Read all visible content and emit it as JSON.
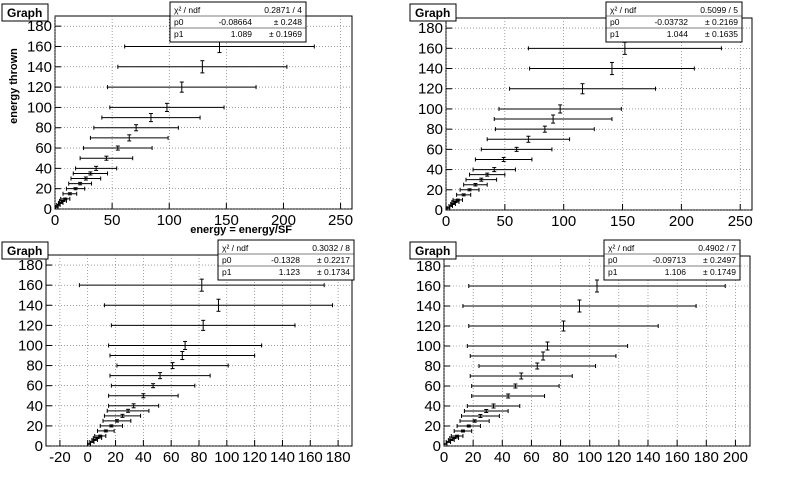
{
  "chart_data": [
    {
      "type": "scatter",
      "title": "Graph",
      "xlabel": "energy = energy/SF",
      "ylabel": "energy thrown",
      "xlim": [
        0,
        260
      ],
      "ylim": [
        0,
        190
      ],
      "xticks": [
        "0",
        "50",
        "100",
        "150",
        "200",
        "250"
      ],
      "yticks": [
        "0",
        "20",
        "40",
        "60",
        "80",
        "100",
        "120",
        "140",
        "160",
        "180"
      ],
      "grid": true,
      "stats": [
        {
          "name": "χ² / ndf",
          "value": "0.2871 / 4"
        },
        {
          "name": "p0",
          "value": "-0.08664",
          "error": "± 0.248"
        },
        {
          "name": "p1",
          "value": "1.089",
          "error": "± 0.1969"
        }
      ],
      "points": [
        {
          "x": 144,
          "y": 160,
          "xerr": 83,
          "yerr": 6
        },
        {
          "x": 129,
          "y": 140,
          "xerr": 74,
          "yerr": 6
        },
        {
          "x": 111,
          "y": 120,
          "xerr": 65,
          "yerr": 5
        },
        {
          "x": 98,
          "y": 100,
          "xerr": 50,
          "yerr": 4
        },
        {
          "x": 84,
          "y": 90,
          "xerr": 43,
          "yerr": 4
        },
        {
          "x": 71,
          "y": 80,
          "xerr": 37,
          "yerr": 3
        },
        {
          "x": 65,
          "y": 70,
          "xerr": 34,
          "yerr": 3
        },
        {
          "x": 55,
          "y": 60,
          "xerr": 30,
          "yerr": 2
        },
        {
          "x": 45,
          "y": 50,
          "xerr": 23,
          "yerr": 2
        },
        {
          "x": 36,
          "y": 40,
          "xerr": 18,
          "yerr": 2
        },
        {
          "x": 31,
          "y": 35,
          "xerr": 15,
          "yerr": 1.5
        },
        {
          "x": 27,
          "y": 30,
          "xerr": 13,
          "yerr": 1.5
        },
        {
          "x": 22,
          "y": 25,
          "xerr": 10,
          "yerr": 1.2
        },
        {
          "x": 18,
          "y": 20,
          "xerr": 8,
          "yerr": 1
        },
        {
          "x": 13,
          "y": 15,
          "xerr": 6,
          "yerr": 1
        },
        {
          "x": 9,
          "y": 10,
          "xerr": 4,
          "yerr": 0.8
        },
        {
          "x": 7,
          "y": 8,
          "xerr": 3,
          "yerr": 0.6
        },
        {
          "x": 5,
          "y": 6,
          "xerr": 2,
          "yerr": 0.5
        },
        {
          "x": 3,
          "y": 4,
          "xerr": 1.5,
          "yerr": 0.4
        },
        {
          "x": 1.5,
          "y": 2,
          "xerr": 1,
          "yerr": 0.3
        }
      ]
    },
    {
      "type": "scatter",
      "title": "Graph",
      "xlabel": "",
      "ylabel": "",
      "xlim": [
        0,
        260
      ],
      "ylim": [
        0,
        190
      ],
      "xticks": [
        "0",
        "50",
        "100",
        "150",
        "200",
        "250"
      ],
      "yticks": [
        "0",
        "20",
        "40",
        "60",
        "80",
        "100",
        "120",
        "140",
        "160",
        "180"
      ],
      "grid": true,
      "stats": [
        {
          "name": "χ² / ndf",
          "value": "0.5099 / 5"
        },
        {
          "name": "p0",
          "value": "-0.03732",
          "error": "± 0.2169"
        },
        {
          "name": "p1",
          "value": "1.044",
          "error": "± 0.1635"
        }
      ],
      "points": [
        {
          "x": 152,
          "y": 160,
          "xerr": 82,
          "yerr": 6
        },
        {
          "x": 141,
          "y": 140,
          "xerr": 70,
          "yerr": 6
        },
        {
          "x": 116,
          "y": 120,
          "xerr": 62,
          "yerr": 5
        },
        {
          "x": 97,
          "y": 100,
          "xerr": 52,
          "yerr": 4
        },
        {
          "x": 91,
          "y": 90,
          "xerr": 50,
          "yerr": 4
        },
        {
          "x": 84,
          "y": 80,
          "xerr": 42,
          "yerr": 3
        },
        {
          "x": 70,
          "y": 70,
          "xerr": 35,
          "yerr": 3
        },
        {
          "x": 60,
          "y": 60,
          "xerr": 30,
          "yerr": 2
        },
        {
          "x": 49,
          "y": 50,
          "xerr": 24,
          "yerr": 2
        },
        {
          "x": 41,
          "y": 40,
          "xerr": 18,
          "yerr": 2
        },
        {
          "x": 35,
          "y": 35,
          "xerr": 15,
          "yerr": 1.5
        },
        {
          "x": 30,
          "y": 30,
          "xerr": 13,
          "yerr": 1.5
        },
        {
          "x": 25,
          "y": 25,
          "xerr": 10,
          "yerr": 1.2
        },
        {
          "x": 20,
          "y": 20,
          "xerr": 8,
          "yerr": 1
        },
        {
          "x": 15,
          "y": 15,
          "xerr": 6,
          "yerr": 1
        },
        {
          "x": 10,
          "y": 10,
          "xerr": 4,
          "yerr": 0.8
        },
        {
          "x": 8,
          "y": 8,
          "xerr": 3,
          "yerr": 0.6
        },
        {
          "x": 6,
          "y": 6,
          "xerr": 2,
          "yerr": 0.5
        },
        {
          "x": 4,
          "y": 4,
          "xerr": 1.5,
          "yerr": 0.4
        },
        {
          "x": 2,
          "y": 2,
          "xerr": 1,
          "yerr": 0.3
        }
      ]
    },
    {
      "type": "scatter",
      "title": "Graph",
      "xlabel": "",
      "ylabel": "",
      "xlim": [
        -30,
        190
      ],
      "ylim": [
        0,
        190
      ],
      "xticks": [
        "-20",
        "0",
        "20",
        "40",
        "60",
        "80",
        "100",
        "120",
        "140",
        "160",
        "180"
      ],
      "yticks": [
        "0",
        "20",
        "40",
        "60",
        "80",
        "100",
        "120",
        "140",
        "160",
        "180"
      ],
      "grid": true,
      "stats": [
        {
          "name": "χ² / ndf",
          "value": "0.3032 / 8"
        },
        {
          "name": "p0",
          "value": "-0.1328",
          "error": "± 0.2217"
        },
        {
          "name": "p1",
          "value": "1.123",
          "error": "± 0.1734"
        }
      ],
      "points": [
        {
          "x": 82,
          "y": 160,
          "xerr": 88,
          "yerr": 6
        },
        {
          "x": 94,
          "y": 140,
          "xerr": 82,
          "yerr": 6
        },
        {
          "x": 83,
          "y": 120,
          "xerr": 66,
          "yerr": 5
        },
        {
          "x": 70,
          "y": 100,
          "xerr": 55,
          "yerr": 4
        },
        {
          "x": 68,
          "y": 90,
          "xerr": 52,
          "yerr": 4
        },
        {
          "x": 61,
          "y": 80,
          "xerr": 40,
          "yerr": 3
        },
        {
          "x": 52,
          "y": 70,
          "xerr": 36,
          "yerr": 3
        },
        {
          "x": 47,
          "y": 60,
          "xerr": 30,
          "yerr": 2
        },
        {
          "x": 40,
          "y": 50,
          "xerr": 25,
          "yerr": 2
        },
        {
          "x": 33,
          "y": 40,
          "xerr": 18,
          "yerr": 2
        },
        {
          "x": 29,
          "y": 35,
          "xerr": 15,
          "yerr": 1.5
        },
        {
          "x": 25,
          "y": 30,
          "xerr": 13,
          "yerr": 1.5
        },
        {
          "x": 21,
          "y": 25,
          "xerr": 10,
          "yerr": 1.2
        },
        {
          "x": 17,
          "y": 20,
          "xerr": 8,
          "yerr": 1
        },
        {
          "x": 13,
          "y": 15,
          "xerr": 6,
          "yerr": 1
        },
        {
          "x": 9,
          "y": 10,
          "xerr": 4,
          "yerr": 0.8
        },
        {
          "x": 7,
          "y": 8,
          "xerr": 3,
          "yerr": 0.6
        },
        {
          "x": 5,
          "y": 6,
          "xerr": 2,
          "yerr": 0.5
        },
        {
          "x": 3,
          "y": 4,
          "xerr": 1.5,
          "yerr": 0.4
        },
        {
          "x": 1,
          "y": 2,
          "xerr": 1,
          "yerr": 0.3
        }
      ]
    },
    {
      "type": "scatter",
      "title": "Graph",
      "xlabel": "",
      "ylabel": "",
      "xlim": [
        0,
        210
      ],
      "ylim": [
        0,
        190
      ],
      "xticks": [
        "0",
        "20",
        "40",
        "60",
        "80",
        "100",
        "120",
        "140",
        "160",
        "180",
        "200"
      ],
      "yticks": [
        "0",
        "20",
        "40",
        "60",
        "80",
        "100",
        "120",
        "140",
        "160",
        "180"
      ],
      "grid": true,
      "stats": [
        {
          "name": "χ² / ndf",
          "value": "0.4902 / 7"
        },
        {
          "name": "p0",
          "value": "-0.09713",
          "error": "± 0.2497"
        },
        {
          "name": "p1",
          "value": "1.106",
          "error": "± 0.1749"
        }
      ],
      "points": [
        {
          "x": 105,
          "y": 160,
          "xerr": 88,
          "yerr": 6
        },
        {
          "x": 93,
          "y": 140,
          "xerr": 80,
          "yerr": 6
        },
        {
          "x": 82,
          "y": 120,
          "xerr": 65,
          "yerr": 5
        },
        {
          "x": 71,
          "y": 100,
          "xerr": 55,
          "yerr": 4
        },
        {
          "x": 68,
          "y": 90,
          "xerr": 50,
          "yerr": 4
        },
        {
          "x": 64,
          "y": 80,
          "xerr": 40,
          "yerr": 3
        },
        {
          "x": 53,
          "y": 70,
          "xerr": 35,
          "yerr": 3
        },
        {
          "x": 49,
          "y": 60,
          "xerr": 30,
          "yerr": 2
        },
        {
          "x": 44,
          "y": 50,
          "xerr": 25,
          "yerr": 2
        },
        {
          "x": 34,
          "y": 40,
          "xerr": 18,
          "yerr": 2
        },
        {
          "x": 29,
          "y": 35,
          "xerr": 15,
          "yerr": 1.5
        },
        {
          "x": 25,
          "y": 30,
          "xerr": 13,
          "yerr": 1.5
        },
        {
          "x": 21,
          "y": 25,
          "xerr": 10,
          "yerr": 1.2
        },
        {
          "x": 17,
          "y": 20,
          "xerr": 8,
          "yerr": 1
        },
        {
          "x": 13,
          "y": 15,
          "xerr": 6,
          "yerr": 1
        },
        {
          "x": 9,
          "y": 10,
          "xerr": 4,
          "yerr": 0.8
        },
        {
          "x": 7,
          "y": 8,
          "xerr": 3,
          "yerr": 0.6
        },
        {
          "x": 5,
          "y": 6,
          "xerr": 2,
          "yerr": 0.5
        },
        {
          "x": 3,
          "y": 4,
          "xerr": 1.5,
          "yerr": 0.4
        },
        {
          "x": 1,
          "y": 2,
          "xerr": 1,
          "yerr": 0.3
        }
      ]
    }
  ]
}
